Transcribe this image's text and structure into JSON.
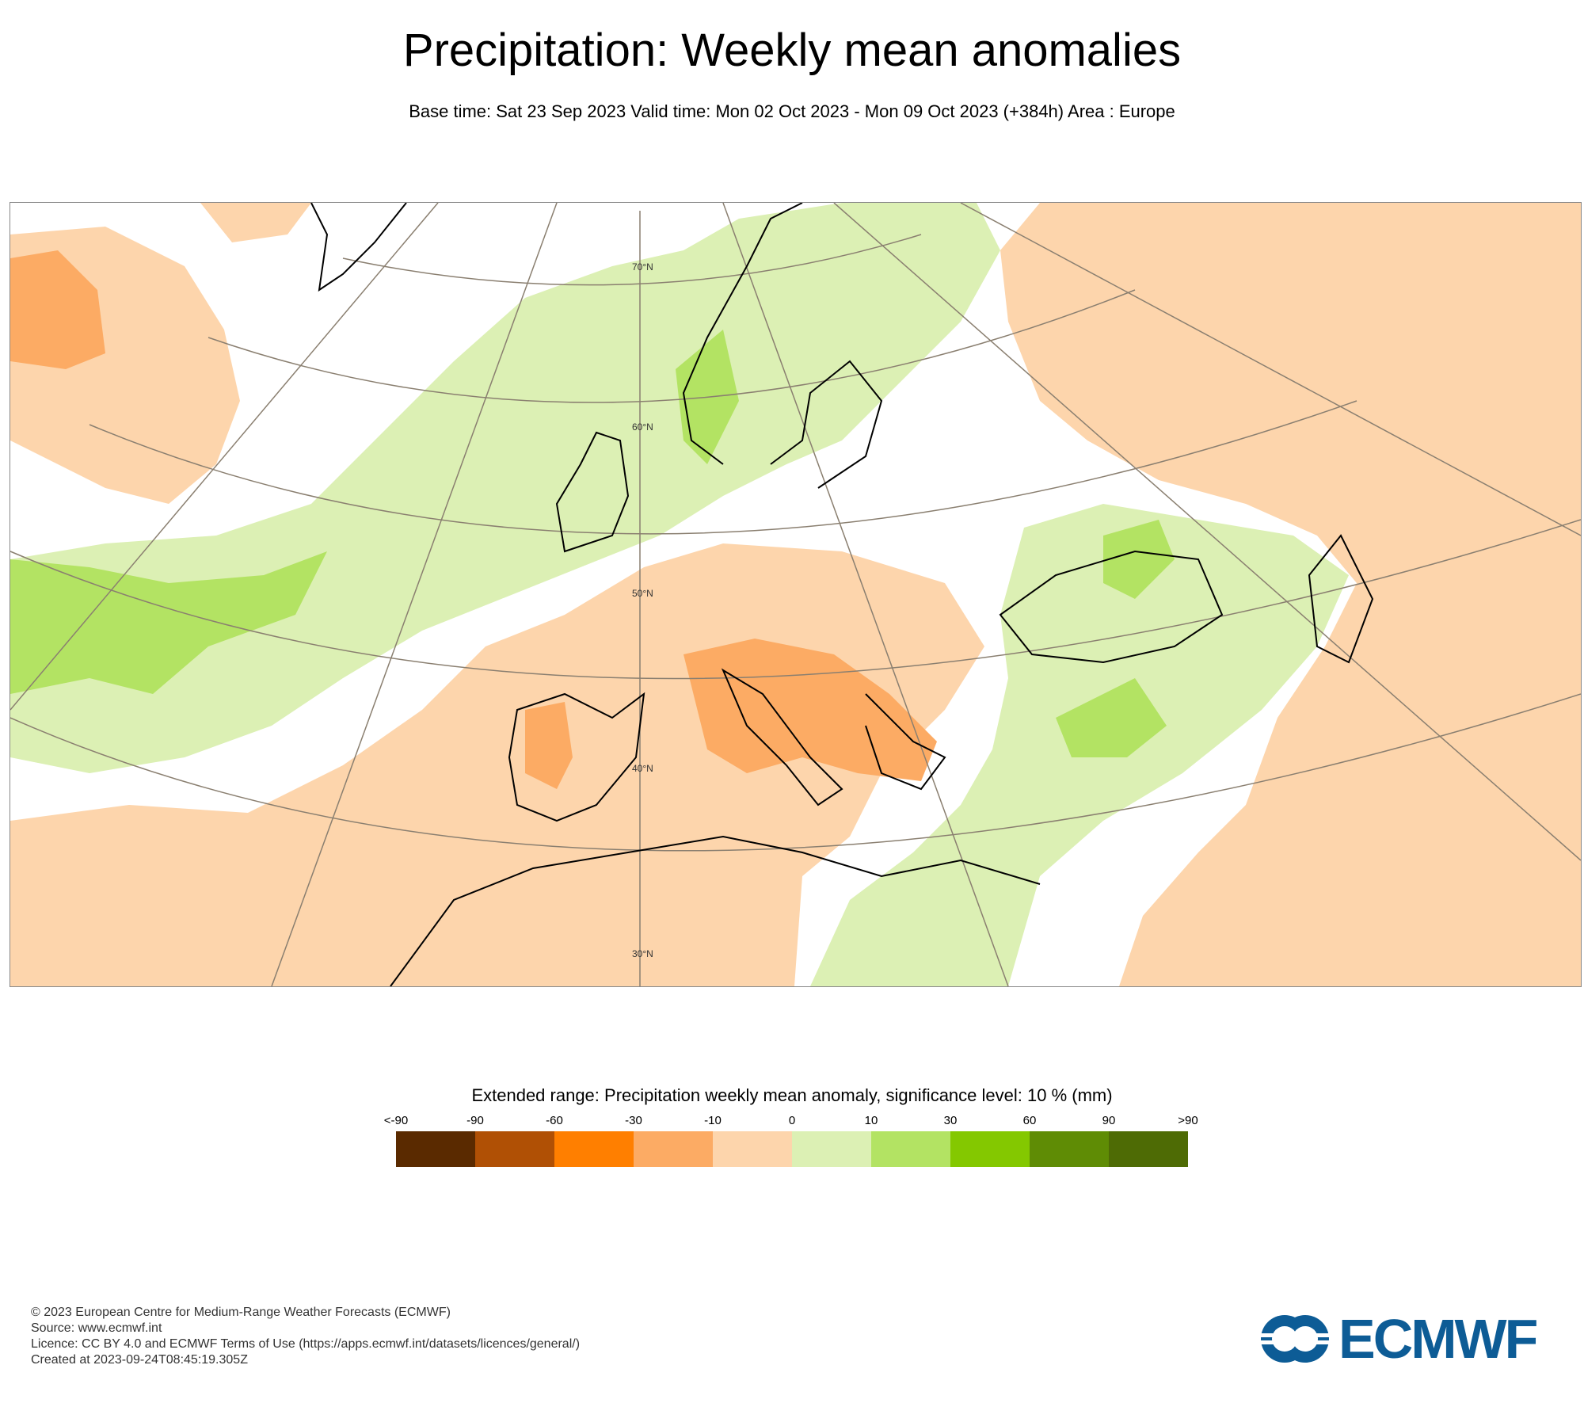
{
  "title": "Precipitation: Weekly mean anomalies",
  "subtitle": "Base time: Sat 23 Sep 2023 Valid time: Mon 02 Oct 2023 - Mon 09 Oct 2023 (+384h) Area : Europe",
  "map": {
    "lat_labels": [
      "70°N",
      "60°N",
      "50°N",
      "40°N",
      "30°N"
    ],
    "colors": {
      "neg_light": "#fdd5ac",
      "neg_mid": "#fcab64",
      "pos_light": "#dcf0b4",
      "pos_mid": "#b3e363",
      "coast": "#000000",
      "grid": "#8a7f70"
    }
  },
  "legend": {
    "title": "Extended range: Precipitation weekly mean anomaly, significance level: 10 % (mm)",
    "labels": [
      "<-90",
      "-90",
      "-60",
      "-30",
      "-10",
      "0",
      "10",
      "30",
      "60",
      "90",
      ">90"
    ],
    "colors": [
      "#5a2a00",
      "#b05005",
      "#ff7f00",
      "#fcab64",
      "#fdd5ac",
      "#dcf0b4",
      "#b3e363",
      "#84c800",
      "#5f8c05",
      "#4e6b05"
    ]
  },
  "footer": {
    "line1": "© 2023 European Centre for Medium-Range Weather Forecasts (ECMWF)",
    "line2": "Source: www.ecmwf.int",
    "line3": "Licence: CC BY 4.0 and ECMWF Terms of Use (https://apps.ecmwf.int/datasets/licences/general/)",
    "line4": "Created at 2023-09-24T08:45:19.305Z"
  },
  "logo": {
    "text": "ECMWF",
    "color": "#0d5c96"
  }
}
